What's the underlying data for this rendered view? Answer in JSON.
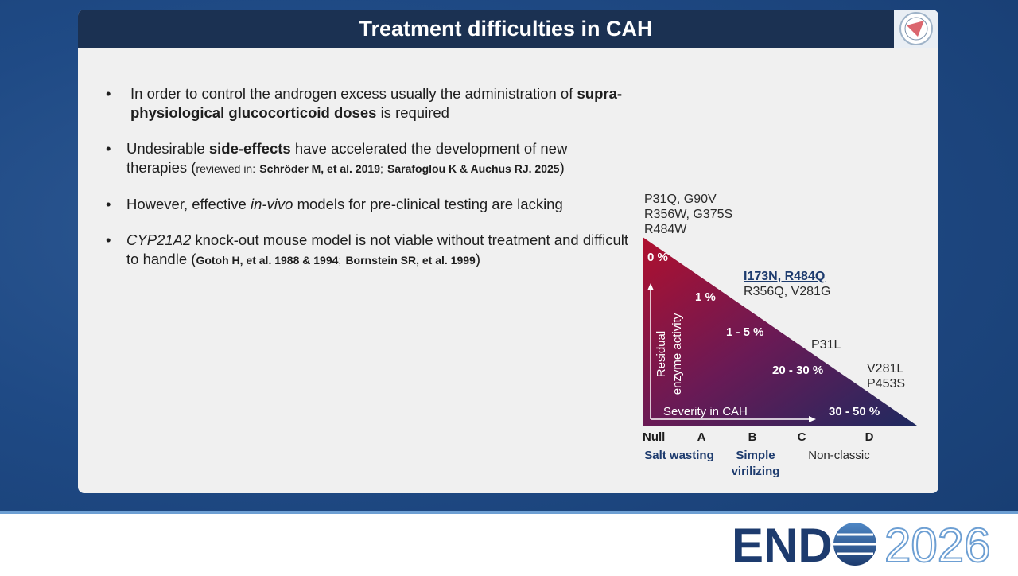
{
  "header": {
    "title": "Treatment difficulties in CAH"
  },
  "bullets": [
    {
      "runs": [
        "In order to control the androgen excess usually the administration of",
        "supra-physiological glucocorticoid doses",
        "is required"
      ]
    },
    {
      "runs": [
        "Undesirable",
        "side-effects",
        "have accelerated the development of new therapies (",
        "reviewed in:",
        "Schröder M, et al. 2019",
        ";",
        "Sarafoglou K & Auchus RJ. 2025",
        ")"
      ]
    },
    {
      "runs": [
        "However, effective",
        "in-vivo",
        "models for pre-clinical testing are lacking"
      ]
    },
    {
      "runs": [
        "CYP21A2",
        "knock-out mouse model is not viable without treatment and difficult to handle (",
        "Gotoh H, et al. 1988 & 1994",
        ";",
        "Bornstein SR, et al. 1999",
        ")"
      ]
    }
  ],
  "diagram": {
    "activity_levels": [
      "0 %",
      "1 %",
      "1 - 5 %",
      "20 - 30 %",
      "30 - 50 %"
    ],
    "mutations": [
      {
        "lines": [
          "P31Q, G90V",
          "R356W, G375S",
          "R484W"
        ]
      },
      {
        "lines": [
          "I173N, R484Q",
          "R356Q, V281G"
        ]
      },
      {
        "lines": [
          "P31L"
        ]
      },
      {
        "lines": [
          "V281L",
          "P453S"
        ]
      }
    ],
    "y_axis_label": [
      "Residual",
      "enzyme activity"
    ],
    "x_axis_label": "Severity in CAH",
    "groups": [
      "Null",
      "A",
      "B",
      "C",
      "D"
    ],
    "phenotypes": [
      {
        "lines": [
          "Salt wasting"
        ]
      },
      {
        "lines": [
          "Simple",
          "virilizing"
        ]
      },
      {
        "lines": [
          "Non-classic"
        ]
      }
    ]
  },
  "footer": {
    "logo": [
      "END",
      "2026"
    ]
  }
}
